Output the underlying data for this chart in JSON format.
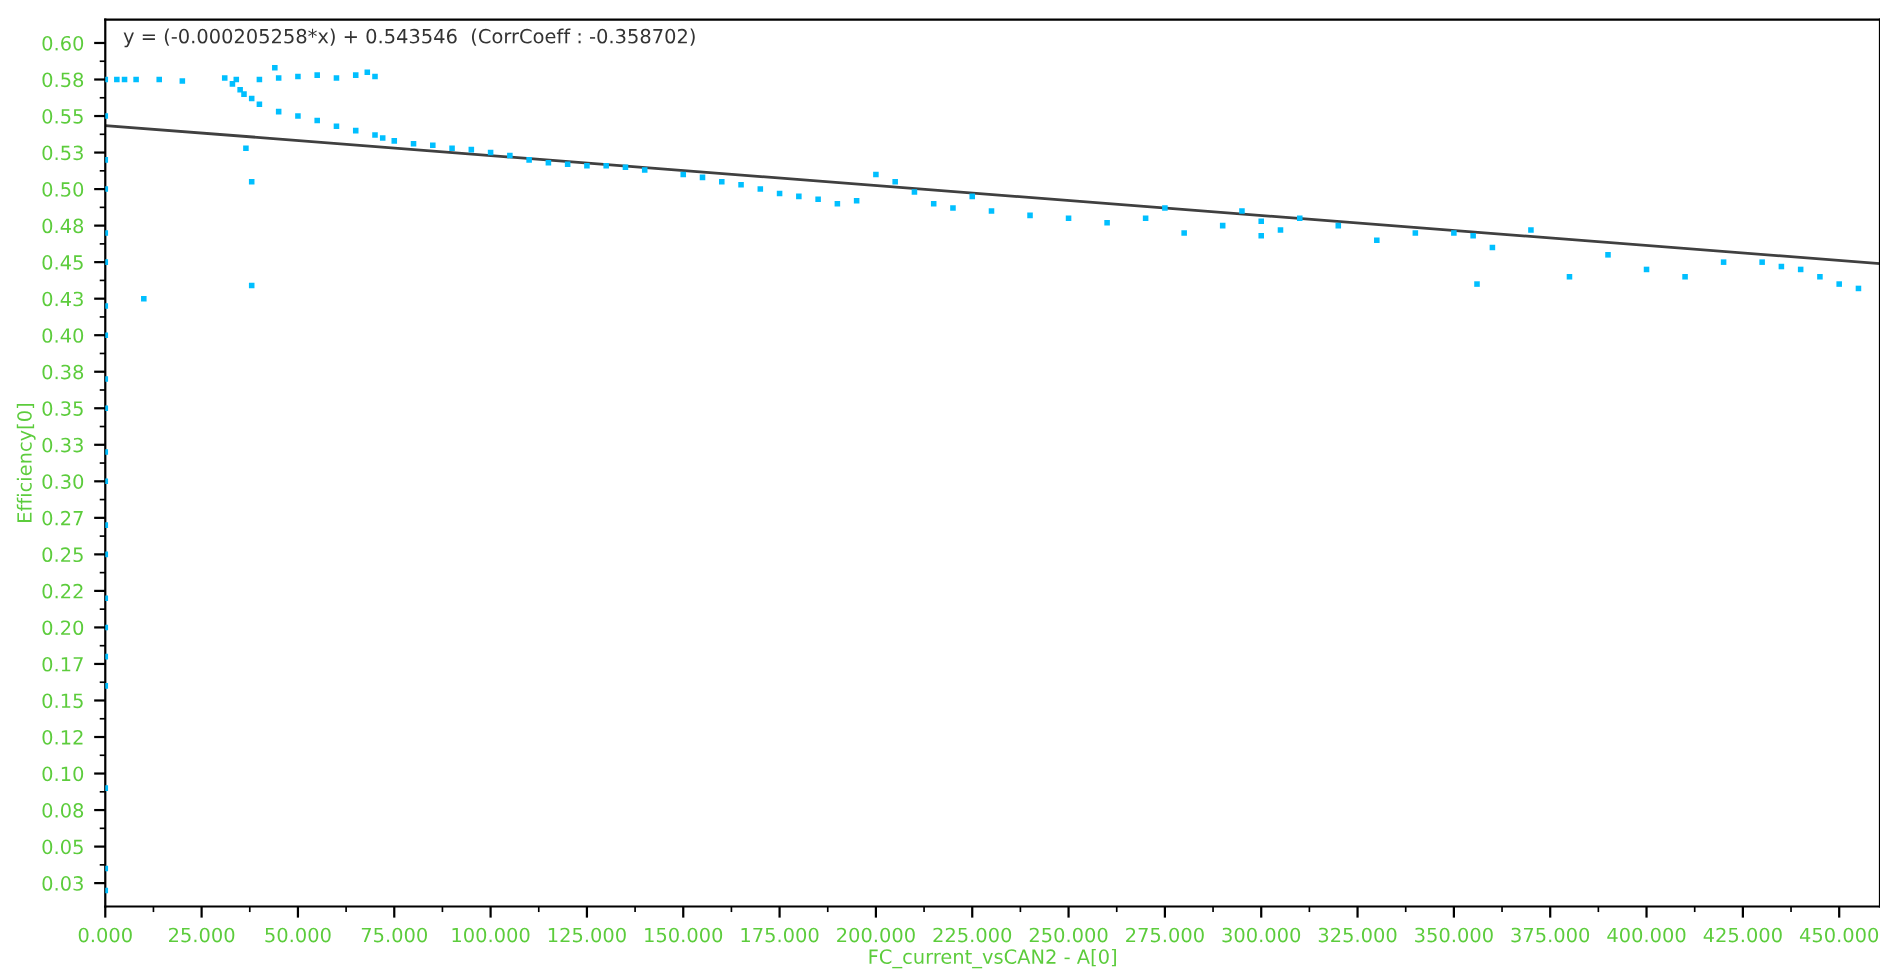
{
  "chart_data": {
    "type": "scatter",
    "xlabel": "FC_current_vsCAN2 - A[0]",
    "ylabel": "Efficiency[0]",
    "annotations": [
      "y = (-0.000205258*x) + 0.543546  (CorrCoeff : -0.358702)"
    ],
    "xlim": [
      0,
      460.591
    ],
    "ylim": [
      0.009,
      0.616
    ],
    "xticks": [
      {
        "value": 0,
        "label": "0.000"
      },
      {
        "value": 25,
        "label": "25.000"
      },
      {
        "value": 50,
        "label": "50.000"
      },
      {
        "value": 75,
        "label": "75.000"
      },
      {
        "value": 100,
        "label": "100.000"
      },
      {
        "value": 125,
        "label": "125.000"
      },
      {
        "value": 150,
        "label": "150.000"
      },
      {
        "value": 175,
        "label": "175.000"
      },
      {
        "value": 200,
        "label": "200.000"
      },
      {
        "value": 225,
        "label": "225.000"
      },
      {
        "value": 250,
        "label": "250.000"
      },
      {
        "value": 275,
        "label": "275.000"
      },
      {
        "value": 300,
        "label": "300.000"
      },
      {
        "value": 325,
        "label": "325.000"
      },
      {
        "value": 350,
        "label": "350.000"
      },
      {
        "value": 375,
        "label": "375.000"
      },
      {
        "value": 400,
        "label": "400.000"
      },
      {
        "value": 425,
        "label": "425.000"
      },
      {
        "value": 450,
        "label": "450.000"
      }
    ],
    "yticks": [
      {
        "value": 0.025,
        "label": "0.03"
      },
      {
        "value": 0.05,
        "label": "0.05"
      },
      {
        "value": 0.075,
        "label": "0.08"
      },
      {
        "value": 0.1,
        "label": "0.10"
      },
      {
        "value": 0.125,
        "label": "0.12"
      },
      {
        "value": 0.15,
        "label": "0.15"
      },
      {
        "value": 0.175,
        "label": "0.17"
      },
      {
        "value": 0.2,
        "label": "0.20"
      },
      {
        "value": 0.225,
        "label": "0.22"
      },
      {
        "value": 0.25,
        "label": "0.25"
      },
      {
        "value": 0.275,
        "label": "0.27"
      },
      {
        "value": 0.3,
        "label": "0.30"
      },
      {
        "value": 0.325,
        "label": "0.33"
      },
      {
        "value": 0.35,
        "label": "0.35"
      },
      {
        "value": 0.375,
        "label": "0.38"
      },
      {
        "value": 0.4,
        "label": "0.40"
      },
      {
        "value": 0.425,
        "label": "0.43"
      },
      {
        "value": 0.45,
        "label": "0.45"
      },
      {
        "value": 0.475,
        "label": "0.48"
      },
      {
        "value": 0.5,
        "label": "0.50"
      },
      {
        "value": 0.525,
        "label": "0.53"
      },
      {
        "value": 0.55,
        "label": "0.55"
      },
      {
        "value": 0.575,
        "label": "0.58"
      },
      {
        "value": 0.6,
        "label": "0.60"
      }
    ],
    "grid": false,
    "legend": false,
    "marker": "square",
    "series": [
      {
        "color": "#00bfff",
        "x": [
          0,
          0,
          0,
          0,
          0,
          0,
          0,
          0,
          0,
          0,
          0,
          0,
          0,
          0,
          0,
          0,
          0,
          0,
          0,
          0,
          0,
          3,
          5,
          8,
          14,
          20,
          10,
          31,
          33,
          35,
          36,
          34,
          38,
          44,
          40,
          45,
          50,
          55,
          60,
          65,
          68,
          70,
          40,
          45,
          50,
          55,
          60,
          65,
          70,
          72,
          75,
          38,
          38,
          36.5,
          80,
          85,
          90,
          95,
          100,
          105,
          110,
          115,
          120,
          125,
          130,
          135,
          140,
          150,
          155,
          160,
          165,
          170,
          175,
          180,
          185,
          190,
          195,
          200,
          205,
          210,
          215,
          220,
          225,
          230,
          240,
          250,
          260,
          270,
          275,
          280,
          290,
          295,
          300,
          305,
          300,
          310,
          320,
          330,
          340,
          350,
          355,
          356,
          360,
          370,
          380,
          390,
          400,
          410,
          420,
          430,
          435,
          440,
          445,
          450,
          455
        ],
        "values": [
          0.575,
          0.55,
          0.52,
          0.5,
          0.47,
          0.45,
          0.42,
          0.4,
          0.37,
          0.35,
          0.32,
          0.3,
          0.27,
          0.25,
          0.22,
          0.2,
          0.18,
          0.16,
          0.09,
          0.035,
          0.02,
          0.575,
          0.575,
          0.575,
          0.575,
          0.574,
          0.425,
          0.576,
          0.572,
          0.568,
          0.565,
          0.575,
          0.562,
          0.583,
          0.575,
          0.576,
          0.577,
          0.578,
          0.576,
          0.578,
          0.58,
          0.577,
          0.558,
          0.553,
          0.55,
          0.547,
          0.543,
          0.54,
          0.537,
          0.535,
          0.533,
          0.505,
          0.434,
          0.528,
          0.531,
          0.53,
          0.528,
          0.527,
          0.525,
          0.523,
          0.52,
          0.518,
          0.517,
          0.516,
          0.516,
          0.515,
          0.513,
          0.51,
          0.508,
          0.505,
          0.503,
          0.5,
          0.497,
          0.495,
          0.493,
          0.49,
          0.492,
          0.51,
          0.505,
          0.498,
          0.49,
          0.487,
          0.495,
          0.485,
          0.482,
          0.48,
          0.477,
          0.48,
          0.487,
          0.47,
          0.475,
          0.485,
          0.478,
          0.472,
          0.468,
          0.48,
          0.475,
          0.465,
          0.47,
          0.47,
          0.468,
          0.435,
          0.46,
          0.472,
          0.44,
          0.455,
          0.445,
          0.44,
          0.45,
          0.45,
          0.447,
          0.445,
          0.44,
          0.435,
          0.432
        ]
      },
      {
        "type": "line",
        "color": "#404040",
        "marker": "none",
        "x": [
          0,
          460.591
        ],
        "values": [
          0.5435,
          0.449
        ]
      }
    ]
  }
}
